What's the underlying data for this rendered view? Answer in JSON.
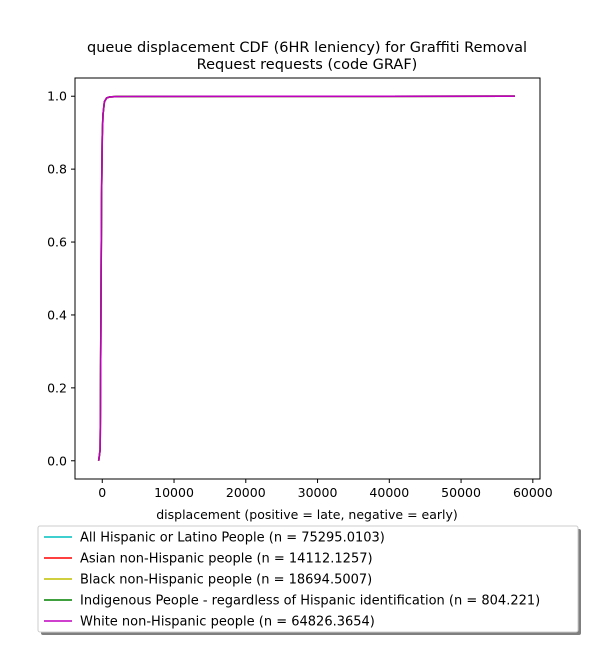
{
  "chart_data": {
    "type": "line",
    "title_lines": [
      "queue displacement CDF (6HR leniency) for Graffiti Removal",
      "Request  requests (code GRAF)"
    ],
    "xlabel": "displacement (positive = late, negative = early)",
    "ylabel": "",
    "xlim": [
      -3800,
      61000
    ],
    "ylim": [
      -0.05,
      1.05
    ],
    "xticks": [
      0,
      10000,
      20000,
      30000,
      40000,
      50000,
      60000
    ],
    "xtick_labels": [
      "0",
      "10000",
      "20000",
      "30000",
      "40000",
      "50000",
      "60000"
    ],
    "yticks": [
      0.0,
      0.2,
      0.4,
      0.6,
      0.8,
      1.0
    ],
    "ytick_labels": [
      "0.0",
      "0.2",
      "0.4",
      "0.6",
      "0.8",
      "1.0"
    ],
    "grid": false,
    "legend_position": "bottom-outside",
    "series": [
      {
        "name": "All Hispanic or Latino People (n = 75295.0103)",
        "color": "#00bfbf",
        "x": [
          -500,
          -300,
          -250,
          -200,
          -150,
          -100,
          0,
          100,
          300,
          600,
          1000,
          2000,
          5000,
          57500
        ],
        "y": [
          0.0,
          0.03,
          0.15,
          0.35,
          0.55,
          0.72,
          0.89,
          0.95,
          0.985,
          0.995,
          0.998,
          0.999,
          0.9995,
          1.0
        ]
      },
      {
        "name": "Asian non-Hispanic people (n = 14112.1257)",
        "color": "#ff0000",
        "x": [
          -500,
          -300,
          -250,
          -200,
          -150,
          -100,
          0,
          100,
          300,
          600,
          1000,
          2000,
          5000,
          57500
        ],
        "y": [
          0.0,
          0.03,
          0.15,
          0.35,
          0.55,
          0.72,
          0.89,
          0.95,
          0.985,
          0.995,
          0.998,
          0.999,
          0.9995,
          1.0
        ]
      },
      {
        "name": "Black non-Hispanic people (n = 18694.5007)",
        "color": "#bfbf00",
        "x": [
          -500,
          -300,
          -250,
          -200,
          -150,
          -100,
          0,
          100,
          300,
          600,
          1000,
          2000,
          5000,
          57500
        ],
        "y": [
          0.0,
          0.03,
          0.15,
          0.35,
          0.55,
          0.72,
          0.89,
          0.95,
          0.985,
          0.995,
          0.998,
          0.999,
          0.9995,
          1.0
        ]
      },
      {
        "name": "Indigenous People - regardless of Hispanic identification (n = 804.221)",
        "color": "#008000",
        "x": [
          -500,
          -300,
          -250,
          -200,
          -150,
          -100,
          0,
          100,
          300,
          600,
          1000,
          2000,
          5000,
          57500
        ],
        "y": [
          0.0,
          0.03,
          0.15,
          0.35,
          0.55,
          0.72,
          0.89,
          0.95,
          0.985,
          0.995,
          0.998,
          0.999,
          0.9995,
          1.0
        ]
      },
      {
        "name": "White non-Hispanic people (n = 64826.3654)",
        "color": "#bf00bf",
        "x": [
          -500,
          -300,
          -250,
          -200,
          -150,
          -100,
          0,
          100,
          300,
          600,
          1000,
          2000,
          5000,
          57500
        ],
        "y": [
          0.0,
          0.03,
          0.15,
          0.35,
          0.55,
          0.72,
          0.89,
          0.95,
          0.985,
          0.995,
          0.998,
          0.999,
          0.9995,
          1.0
        ]
      }
    ]
  }
}
